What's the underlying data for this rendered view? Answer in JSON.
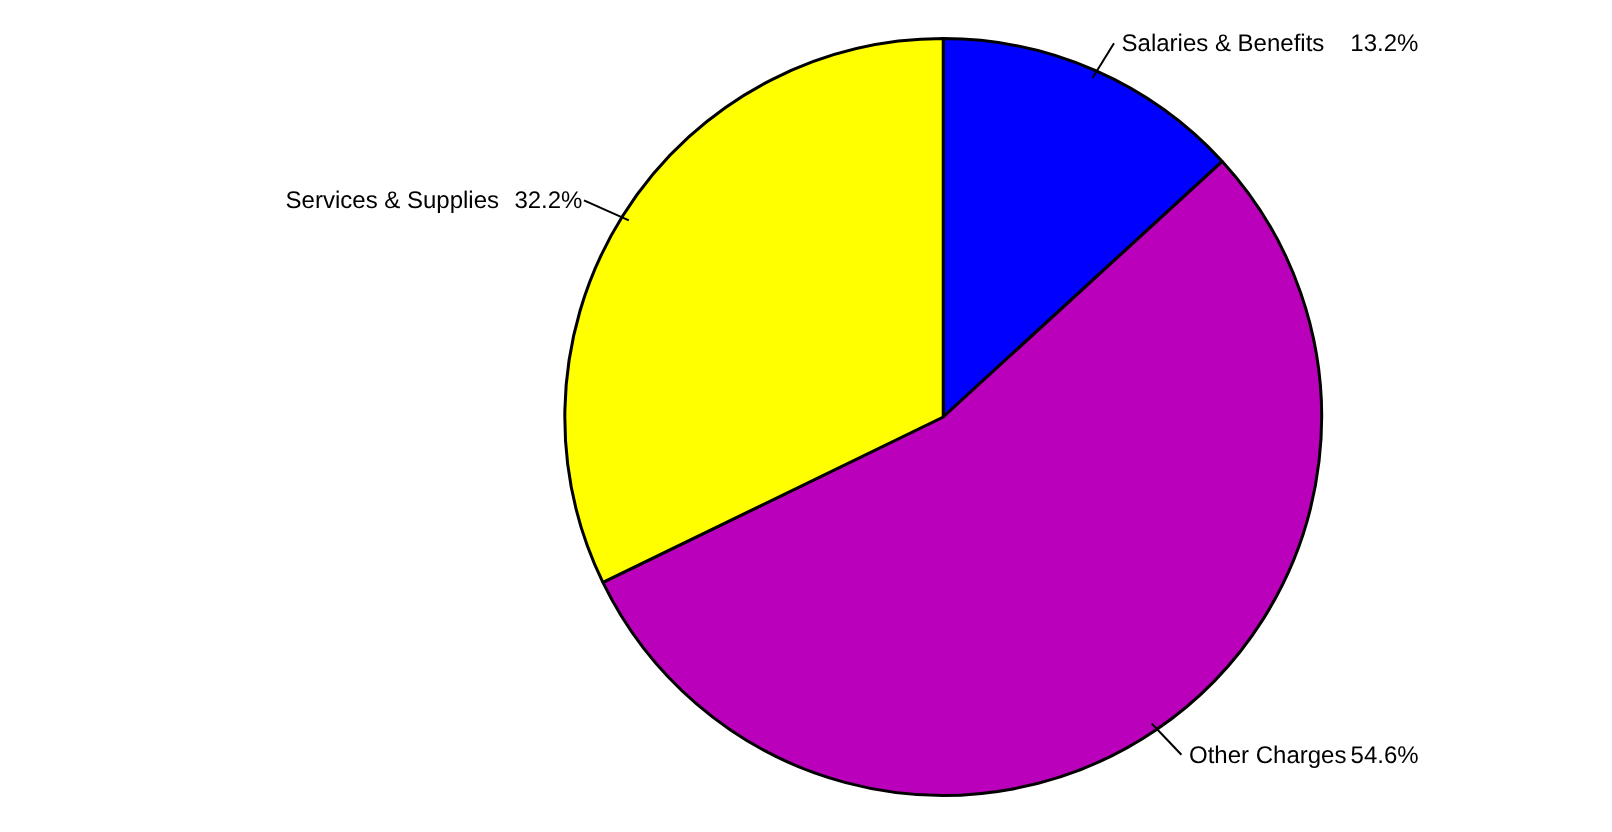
{
  "chart_data": {
    "type": "pie",
    "categories": [
      "Salaries & Benefits",
      "Other Charges",
      "Services & Supplies"
    ],
    "values": [
      13.2,
      54.6,
      32.2
    ],
    "colors": [
      "#0000ff",
      "#bb00bb",
      "#ffff00"
    ],
    "value_labels": [
      "13.2%",
      "54.6%",
      "32.2%"
    ]
  }
}
